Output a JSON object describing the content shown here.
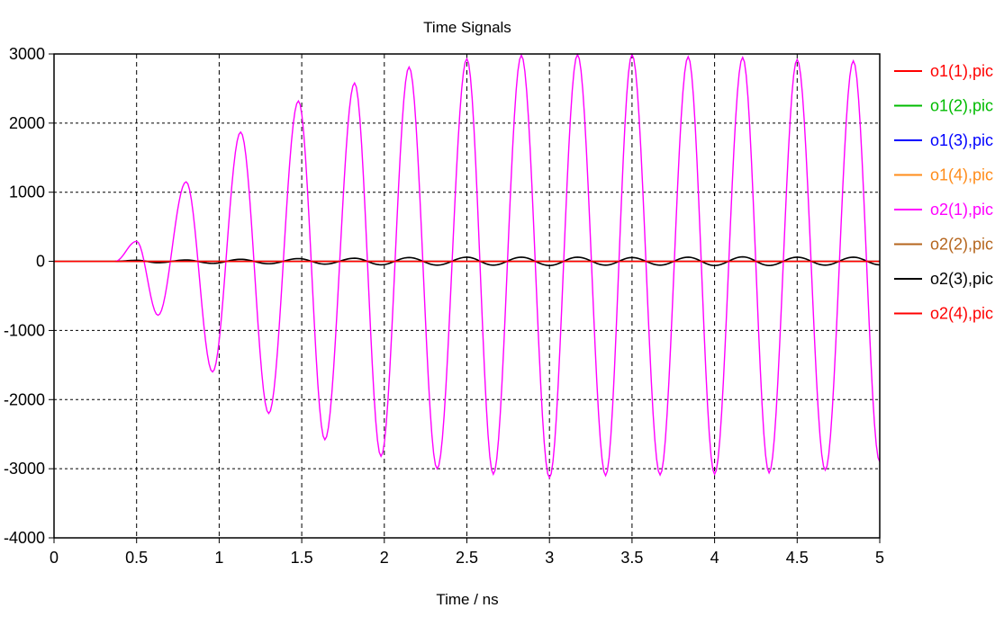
{
  "chart_data": {
    "type": "line",
    "title": "Time Signals",
    "xlabel": "Time / ns",
    "ylabel": "",
    "xlim": [
      0,
      5
    ],
    "ylim": [
      -4000,
      3000
    ],
    "x_ticks": [
      "0",
      "0.5",
      "1",
      "1.5",
      "2",
      "2.5",
      "3",
      "3.5",
      "4",
      "4.5",
      "5"
    ],
    "y_ticks": [
      "3000",
      "2000",
      "1000",
      "0",
      "-1000",
      "-2000",
      "-3000",
      "-4000"
    ],
    "grid": true,
    "legend_position": "right",
    "series": [
      {
        "name": "o1(1),pic",
        "color": "#ff0000",
        "kind": "flat",
        "points": [
          [
            0,
            0
          ],
          [
            5,
            0
          ]
        ]
      },
      {
        "name": "o1(2),pic",
        "color": "#00bb00",
        "kind": "flat",
        "points": [
          [
            0,
            0
          ],
          [
            5,
            0
          ]
        ]
      },
      {
        "name": "o1(3),pic",
        "color": "#0000ff",
        "kind": "flat",
        "points": [
          [
            0,
            0
          ],
          [
            5,
            0
          ]
        ]
      },
      {
        "name": "o1(4),pic",
        "color": "#ff8c1a",
        "kind": "flat",
        "points": [
          [
            0,
            0
          ],
          [
            5,
            0
          ]
        ]
      },
      {
        "name": "o2(1),pic",
        "color": "#ff00ff",
        "kind": "oscillation",
        "points": [
          [
            0.37,
            0
          ],
          [
            0.5,
            290
          ],
          [
            0.63,
            -780
          ],
          [
            0.8,
            1150
          ],
          [
            0.96,
            -1600
          ],
          [
            1.13,
            1870
          ],
          [
            1.3,
            -2200
          ],
          [
            1.48,
            2320
          ],
          [
            1.64,
            -2580
          ],
          [
            1.82,
            2580
          ],
          [
            1.98,
            -2820
          ],
          [
            2.15,
            2810
          ],
          [
            2.32,
            -3000
          ],
          [
            2.5,
            2930
          ],
          [
            2.66,
            -3080
          ],
          [
            2.83,
            2980
          ],
          [
            3.0,
            -3130
          ],
          [
            3.17,
            2990
          ],
          [
            3.34,
            -3100
          ],
          [
            3.5,
            2990
          ],
          [
            3.67,
            -3090
          ],
          [
            3.84,
            2960
          ],
          [
            4.0,
            -3080
          ],
          [
            4.17,
            2950
          ],
          [
            4.33,
            -3060
          ],
          [
            4.5,
            2920
          ],
          [
            4.67,
            -3020
          ],
          [
            4.84,
            2900
          ],
          [
            5.0,
            -2900
          ]
        ]
      },
      {
        "name": "o2(2),pic",
        "color": "#b5651d",
        "kind": "flat",
        "points": [
          [
            0,
            0
          ],
          [
            5,
            0
          ]
        ]
      },
      {
        "name": "o2(3),pic",
        "color": "#000000",
        "kind": "ripple",
        "points": [
          [
            0.37,
            0
          ],
          [
            0.5,
            15
          ],
          [
            0.63,
            -20
          ],
          [
            0.8,
            20
          ],
          [
            0.96,
            -30
          ],
          [
            1.13,
            30
          ],
          [
            1.3,
            -35
          ],
          [
            1.48,
            40
          ],
          [
            1.64,
            -40
          ],
          [
            1.82,
            45
          ],
          [
            1.98,
            -50
          ],
          [
            2.15,
            55
          ],
          [
            2.32,
            -55
          ],
          [
            2.5,
            60
          ],
          [
            2.66,
            -55
          ],
          [
            2.83,
            60
          ],
          [
            3.0,
            -60
          ],
          [
            3.17,
            60
          ],
          [
            3.34,
            -55
          ],
          [
            3.5,
            55
          ],
          [
            3.67,
            -55
          ],
          [
            3.84,
            60
          ],
          [
            4.0,
            -60
          ],
          [
            4.17,
            65
          ],
          [
            4.33,
            -60
          ],
          [
            4.5,
            60
          ],
          [
            4.67,
            -55
          ],
          [
            4.84,
            60
          ],
          [
            5.0,
            -50
          ]
        ]
      },
      {
        "name": "o2(4),pic",
        "color": "#ff0000",
        "kind": "flat",
        "points": [
          [
            0,
            0
          ],
          [
            5,
            0
          ]
        ]
      }
    ]
  }
}
